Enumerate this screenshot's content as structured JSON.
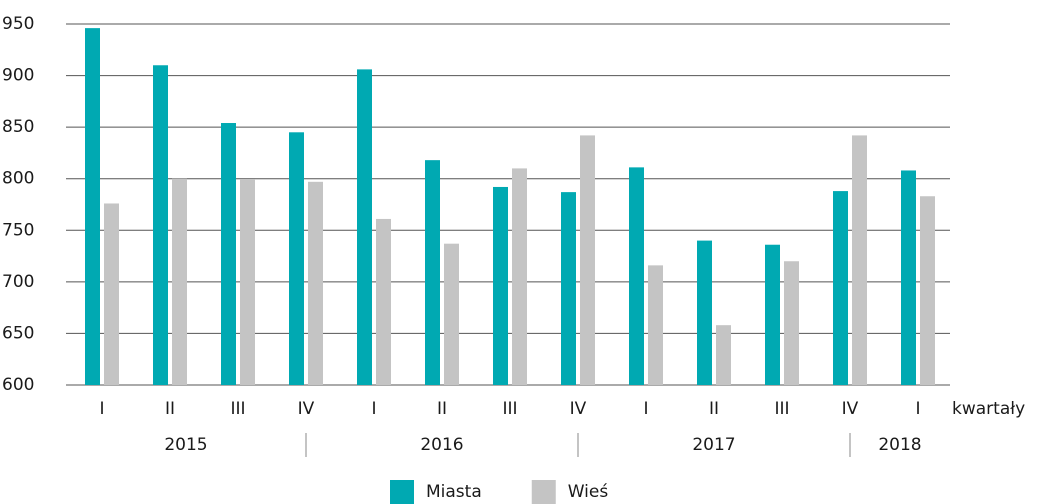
{
  "chart_data": {
    "type": "bar",
    "categories": [
      "I",
      "II",
      "III",
      "IV",
      "I",
      "II",
      "III",
      "IV",
      "I",
      "II",
      "III",
      "IV",
      "I"
    ],
    "groups": [
      {
        "label": "2015",
        "span": 4
      },
      {
        "label": "2016",
        "span": 4
      },
      {
        "label": "2017",
        "span": 4
      },
      {
        "label": "2018",
        "span": 1
      }
    ],
    "x_label": "kwartały",
    "series": [
      {
        "name": "Miasta",
        "color": "#00a9b2",
        "values": [
          946,
          910,
          854,
          845,
          906,
          818,
          792,
          787,
          811,
          740,
          736,
          788,
          808
        ]
      },
      {
        "name": "Wieś",
        "color": "#c4c4c4",
        "values": [
          776,
          800,
          799,
          797,
          761,
          737,
          810,
          842,
          716,
          658,
          720,
          842,
          783
        ]
      }
    ],
    "ylim": [
      600,
      950
    ],
    "yticks": [
      600,
      650,
      700,
      750,
      800,
      850,
      900,
      950
    ],
    "grid": true,
    "legend": "bottom"
  }
}
